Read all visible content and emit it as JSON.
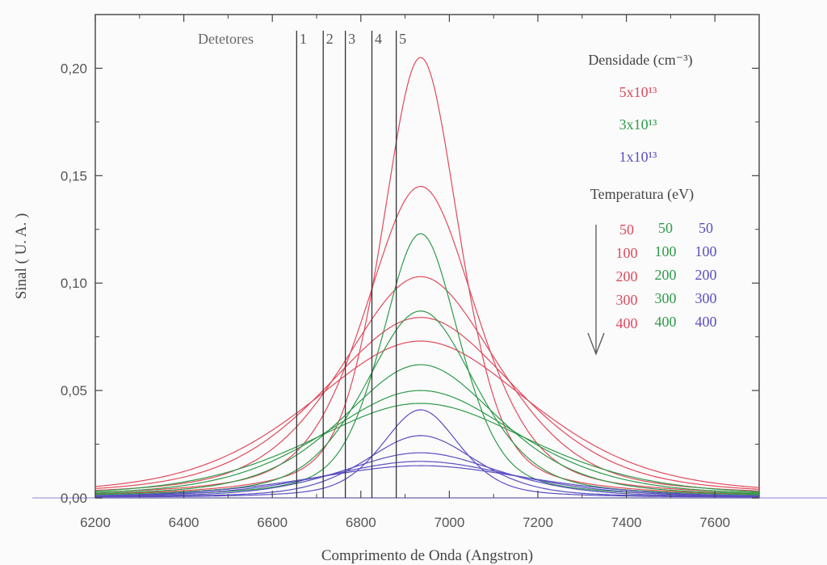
{
  "chart_data": {
    "type": "line",
    "title": "",
    "xlabel": "Comprimento de Onda (Angstron)",
    "ylabel": "Sinal ( U. A. )",
    "xlim": [
      6200,
      7700
    ],
    "ylim": [
      0,
      0.225
    ],
    "x_ticks": [
      6200,
      6400,
      6600,
      6800,
      7000,
      7200,
      7400,
      7600
    ],
    "x_tick_labels": [
      "6200",
      "6400",
      "6600",
      "6800",
      "7000",
      "7200",
      "7400",
      "7600"
    ],
    "y_ticks": [
      0,
      0.05,
      0.1,
      0.15,
      0.2
    ],
    "y_tick_labels": [
      "0,00",
      "0,05",
      "0,10",
      "0,15",
      "0,20"
    ],
    "center_wavelength": 6935,
    "detectors": {
      "label": "Detetores",
      "positions": [
        6655,
        6715,
        6765,
        6825,
        6880
      ],
      "labels": [
        "1",
        "2",
        "3",
        "4",
        "5"
      ]
    },
    "legend": {
      "density_title": "Densidade (cm⁻³)",
      "density_entries": [
        {
          "label": "5x10¹³",
          "color": "#e04a5c"
        },
        {
          "label": "3x10¹³",
          "color": "#2f9a4a"
        },
        {
          "label": "1x10¹³",
          "color": "#5a4fc0"
        }
      ],
      "temperature_title": "Temperatura (eV)",
      "temperature_columns": [
        {
          "color": "#e04a5c",
          "values": [
            "50",
            "100",
            "200",
            "300",
            "400"
          ]
        },
        {
          "color": "#2f9a4a",
          "values": [
            "50",
            "100",
            "200",
            "300",
            "400"
          ]
        },
        {
          "color": "#5a4fc0",
          "values": [
            "50",
            "100",
            "200",
            "300",
            "400"
          ]
        }
      ],
      "arrow_direction": "down"
    },
    "series": [
      {
        "density": "5x10¹³",
        "temperature": 50,
        "color": "#e04a5c",
        "peak": 0.205,
        "fwhm": 210
      },
      {
        "density": "5x10¹³",
        "temperature": 100,
        "color": "#e04a5c",
        "peak": 0.145,
        "fwhm": 300
      },
      {
        "density": "5x10¹³",
        "temperature": 200,
        "color": "#e04a5c",
        "peak": 0.103,
        "fwhm": 420
      },
      {
        "density": "5x10¹³",
        "temperature": 300,
        "color": "#e04a5c",
        "peak": 0.084,
        "fwhm": 520
      },
      {
        "density": "5x10¹³",
        "temperature": 400,
        "color": "#e04a5c",
        "peak": 0.073,
        "fwhm": 600
      },
      {
        "density": "3x10¹³",
        "temperature": 50,
        "color": "#2f9a4a",
        "peak": 0.123,
        "fwhm": 210
      },
      {
        "density": "3x10¹³",
        "temperature": 100,
        "color": "#2f9a4a",
        "peak": 0.087,
        "fwhm": 300
      },
      {
        "density": "3x10¹³",
        "temperature": 200,
        "color": "#2f9a4a",
        "peak": 0.062,
        "fwhm": 420
      },
      {
        "density": "3x10¹³",
        "temperature": 300,
        "color": "#2f9a4a",
        "peak": 0.05,
        "fwhm": 520
      },
      {
        "density": "3x10¹³",
        "temperature": 400,
        "color": "#2f9a4a",
        "peak": 0.044,
        "fwhm": 600
      },
      {
        "density": "1x10¹³",
        "temperature": 50,
        "color": "#5a4fc0",
        "peak": 0.041,
        "fwhm": 210
      },
      {
        "density": "1x10¹³",
        "temperature": 100,
        "color": "#5a4fc0",
        "peak": 0.029,
        "fwhm": 300
      },
      {
        "density": "1x10¹³",
        "temperature": 200,
        "color": "#5a4fc0",
        "peak": 0.021,
        "fwhm": 420
      },
      {
        "density": "1x10¹³",
        "temperature": 300,
        "color": "#5a4fc0",
        "peak": 0.017,
        "fwhm": 520
      },
      {
        "density": "1x10¹³",
        "temperature": 400,
        "color": "#5a4fc0",
        "peak": 0.015,
        "fwhm": 600
      }
    ]
  }
}
